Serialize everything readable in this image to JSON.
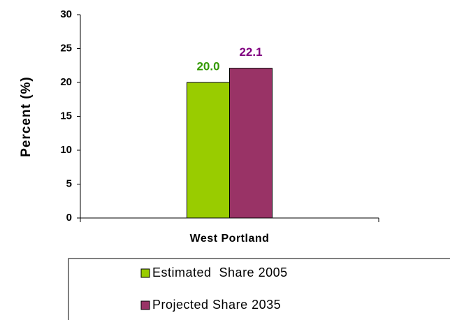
{
  "chart_data": {
    "type": "bar",
    "ylabel": "Percent (%)",
    "categories": [
      "West Portland"
    ],
    "series": [
      {
        "name": "Estimated  Share 2005",
        "color": "#99cc00",
        "label_color": "#339900",
        "values": [
          20.0
        ],
        "value_labels": [
          "20.0"
        ]
      },
      {
        "name": "Projected Share 2035",
        "color": "#993366",
        "label_color": "#800080",
        "values": [
          22.1
        ]
      }
    ],
    "ylim": [
      0,
      30
    ],
    "yticks": [
      0,
      5,
      10,
      15,
      20,
      25,
      30
    ],
    "grid": false
  }
}
